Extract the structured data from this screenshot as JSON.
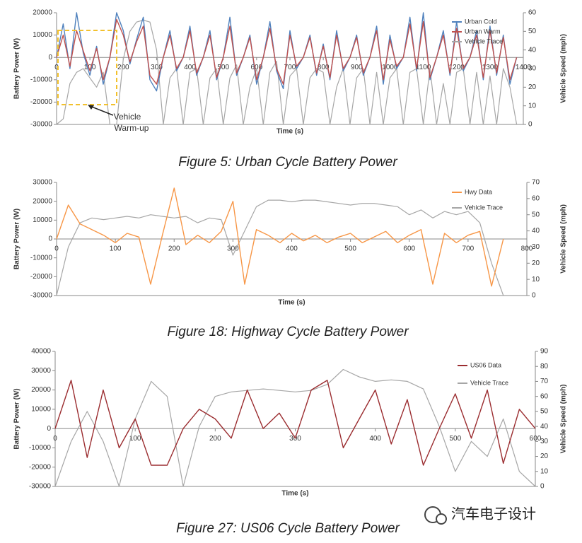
{
  "chart_data": [
    {
      "type": "line",
      "title": "Figure 5: Urban Cycle Battery Power",
      "xlabel": "Time (s)",
      "ylabel": "Battery Power (W)",
      "y2label": "Vehicle Speed (mph)",
      "annotation": [
        "Vehicle",
        "Warm-up"
      ],
      "xlim": [
        0,
        1400
      ],
      "xticks": [
        0,
        100,
        200,
        300,
        400,
        500,
        600,
        700,
        800,
        900,
        1000,
        1100,
        1200,
        1300,
        1400
      ],
      "ylim": [
        -30000,
        20000
      ],
      "yticks": [
        -30000,
        -20000,
        -10000,
        0,
        10000,
        20000
      ],
      "y2lim": [
        0,
        60
      ],
      "y2ticks": [
        0,
        10,
        20,
        30,
        40,
        50,
        60
      ],
      "legend": "top-right",
      "x": [
        0,
        20,
        40,
        60,
        80,
        100,
        120,
        140,
        160,
        180,
        200,
        220,
        240,
        260,
        280,
        300,
        320,
        340,
        360,
        380,
        400,
        420,
        440,
        460,
        480,
        500,
        520,
        540,
        560,
        580,
        600,
        620,
        640,
        660,
        680,
        700,
        720,
        740,
        760,
        780,
        800,
        820,
        840,
        860,
        880,
        900,
        920,
        940,
        960,
        980,
        1000,
        1020,
        1040,
        1060,
        1080,
        1100,
        1120,
        1140,
        1160,
        1180,
        1200,
        1220,
        1240,
        1260,
        1280,
        1300,
        1320,
        1340,
        1360,
        1380
      ],
      "series": [
        {
          "name": "Urban Cold",
          "color": "#4f81bd",
          "axis": "y",
          "values": [
            0,
            15000,
            -5000,
            20000,
            2000,
            -8000,
            5000,
            -12000,
            0,
            20000,
            12000,
            -3000,
            8000,
            18000,
            -10000,
            -15000,
            0,
            12000,
            -6000,
            0,
            14000,
            -8000,
            0,
            12000,
            -10000,
            0,
            18000,
            -8000,
            0,
            10000,
            -12000,
            0,
            16000,
            -6000,
            -14000,
            12000,
            -5000,
            0,
            10000,
            -8000,
            6000,
            -10000,
            12000,
            -6000,
            0,
            10000,
            -8000,
            0,
            14000,
            -12000,
            10000,
            -5000,
            0,
            18000,
            -6000,
            20000,
            -10000,
            0,
            12000,
            -8000,
            16000,
            -6000,
            0,
            12000,
            -10000,
            14000,
            -8000,
            10000,
            -12000,
            0
          ]
        },
        {
          "name": "Urban Warm",
          "color": "#c0504d",
          "axis": "y",
          "values": [
            0,
            10000,
            -4000,
            12000,
            3000,
            -6000,
            4000,
            -10000,
            0,
            17000,
            10000,
            -2000,
            7000,
            14000,
            -8000,
            -12000,
            0,
            10000,
            -5000,
            0,
            12000,
            -7000,
            0,
            10000,
            -9000,
            0,
            14000,
            -7000,
            0,
            9000,
            -10000,
            0,
            13000,
            -5000,
            -12000,
            10000,
            -4000,
            0,
            9000,
            -7000,
            5000,
            -9000,
            10000,
            -5000,
            0,
            9000,
            -7000,
            0,
            12000,
            -10000,
            8000,
            -4000,
            0,
            15000,
            -5000,
            16000,
            -9000,
            0,
            10000,
            -7000,
            13000,
            -5000,
            0,
            10000,
            -9000,
            12000,
            -7000,
            9000,
            -10000,
            0
          ]
        },
        {
          "name": "Vehicle Trace",
          "color": "#a6a6a6",
          "axis": "y2",
          "values": [
            0,
            3,
            22,
            28,
            30,
            25,
            20,
            28,
            0,
            0,
            35,
            50,
            55,
            56,
            55,
            40,
            0,
            25,
            30,
            0,
            28,
            30,
            0,
            25,
            30,
            0,
            25,
            32,
            0,
            20,
            30,
            0,
            28,
            34,
            0,
            26,
            30,
            0,
            25,
            30,
            28,
            0,
            20,
            30,
            0,
            25,
            30,
            0,
            28,
            0,
            25,
            30,
            0,
            28,
            30,
            0,
            30,
            0,
            22,
            0,
            28,
            30,
            0,
            28,
            0,
            26,
            0,
            30,
            20,
            0
          ]
        }
      ]
    },
    {
      "type": "line",
      "title": "Figure 18: Highway Cycle Battery Power",
      "xlabel": "Time (s)",
      "ylabel": "Battery Power (W)",
      "y2label": "Vehicle Speed (mph)",
      "xlim": [
        0,
        800
      ],
      "xticks": [
        0,
        100,
        200,
        300,
        400,
        500,
        600,
        700,
        800
      ],
      "ylim": [
        -30000,
        30000
      ],
      "yticks": [
        -30000,
        -20000,
        -10000,
        0,
        10000,
        20000,
        30000
      ],
      "y2lim": [
        0,
        70
      ],
      "y2ticks": [
        0,
        10,
        20,
        30,
        40,
        50,
        60,
        70
      ],
      "legend": "top-right",
      "x": [
        0,
        20,
        40,
        60,
        80,
        100,
        120,
        140,
        160,
        180,
        200,
        220,
        240,
        260,
        280,
        300,
        320,
        340,
        360,
        380,
        400,
        420,
        440,
        460,
        480,
        500,
        520,
        540,
        560,
        580,
        600,
        620,
        640,
        660,
        680,
        700,
        720,
        740,
        760
      ],
      "series": [
        {
          "name": "Hwy Data",
          "color": "#f79646",
          "axis": "y",
          "values": [
            0,
            18000,
            8000,
            5000,
            2000,
            -2000,
            3000,
            1000,
            -24000,
            2000,
            27000,
            -3000,
            2000,
            -2000,
            4000,
            20000,
            -24000,
            5000,
            2000,
            -2000,
            3000,
            -1000,
            2000,
            -2000,
            1000,
            3000,
            -2000,
            1000,
            4000,
            -2000,
            2000,
            5000,
            -24000,
            3000,
            -2000,
            2000,
            4000,
            -25000,
            0
          ]
        },
        {
          "name": "Vehicle Trace",
          "color": "#a6a6a6",
          "axis": "y2",
          "values": [
            0,
            30,
            45,
            48,
            47,
            48,
            49,
            48,
            50,
            49,
            48,
            49,
            45,
            48,
            47,
            25,
            40,
            55,
            59,
            59,
            58,
            59,
            59,
            58,
            57,
            56,
            57,
            57,
            56,
            55,
            50,
            53,
            48,
            52,
            50,
            52,
            45,
            20,
            0
          ]
        }
      ]
    },
    {
      "type": "line",
      "title": "Figure 27: US06 Cycle Battery Power",
      "xlabel": "Time (s)",
      "ylabel": "Battery Power (W)",
      "y2label": "Vehicle Speed (mph)",
      "xlim": [
        0,
        600
      ],
      "xticks": [
        0,
        100,
        200,
        300,
        400,
        500,
        600
      ],
      "ylim": [
        -30000,
        40000
      ],
      "yticks": [
        -30000,
        -20000,
        -10000,
        0,
        10000,
        20000,
        30000,
        40000
      ],
      "y2lim": [
        0,
        90
      ],
      "y2ticks": [
        0,
        10,
        20,
        30,
        40,
        50,
        60,
        70,
        80,
        90
      ],
      "legend": "top-right",
      "x": [
        0,
        20,
        40,
        60,
        80,
        100,
        120,
        140,
        160,
        180,
        200,
        220,
        240,
        260,
        280,
        300,
        320,
        340,
        360,
        380,
        400,
        420,
        440,
        460,
        480,
        500,
        520,
        540,
        560,
        580,
        600
      ],
      "series": [
        {
          "name": "US06 Data",
          "color": "#9b2d30",
          "axis": "y",
          "values": [
            0,
            25000,
            -15000,
            20000,
            -10000,
            5000,
            -19000,
            -19000,
            0,
            10000,
            5000,
            -5000,
            20000,
            0,
            8000,
            -5000,
            20000,
            25000,
            -10000,
            5000,
            20000,
            -8000,
            15000,
            -19000,
            0,
            18000,
            -5000,
            20000,
            -18000,
            10000,
            0
          ]
        },
        {
          "name": "Vehicle Trace",
          "color": "#a6a6a6",
          "axis": "y2",
          "values": [
            0,
            30,
            50,
            30,
            0,
            45,
            70,
            60,
            0,
            40,
            60,
            63,
            64,
            65,
            64,
            63,
            64,
            68,
            78,
            73,
            70,
            71,
            70,
            65,
            40,
            10,
            30,
            20,
            45,
            10,
            0
          ]
        }
      ]
    }
  ],
  "watermark": "汽车电子设计"
}
